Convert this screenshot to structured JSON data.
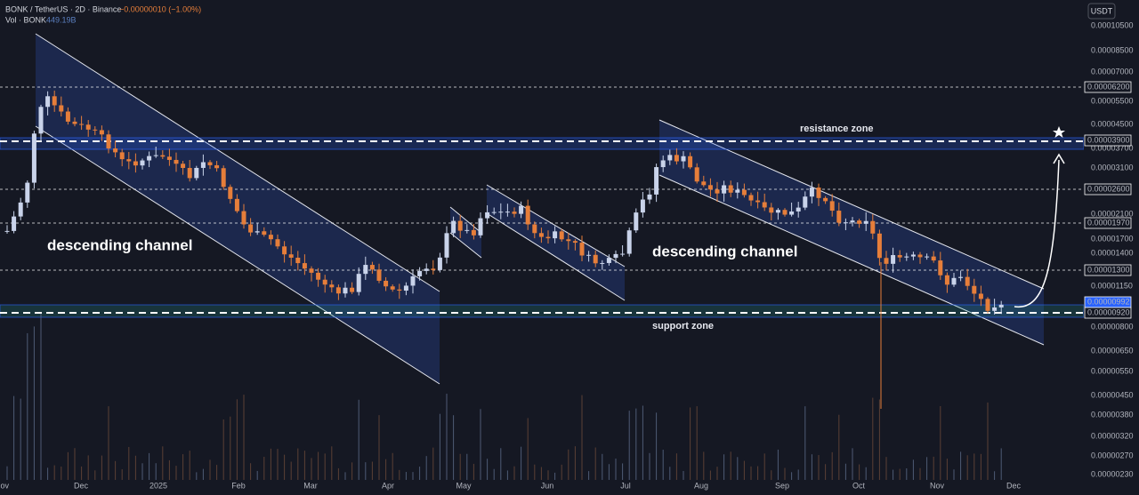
{
  "header": {
    "symbol": "BONK / TetherUS · 2D · Binance",
    "change": "−0.00000010 (−1.00%)",
    "volume_label": "Vol · BONK",
    "volume_value": "449.19B"
  },
  "currency": "USDT",
  "price_labels": [
    "0.00010500",
    "0.00008500",
    "0.00007000",
    "0.00005500",
    "0.00004500",
    "0.00003700",
    "0.00003100",
    "0.00002100",
    "0.00001700",
    "0.00001400",
    "0.00001150",
    "0.00000800",
    "0.00000650",
    "0.00000550",
    "0.00000450",
    "0.00000380",
    "0.00000320",
    "0.00000270",
    "0.00000230"
  ],
  "price_levels": [
    "0.00006200",
    "0.00003900",
    "0.00002600",
    "0.00001970",
    "0.00001300",
    "0.00000992",
    "0.00000920"
  ],
  "time_labels": [
    "Nov",
    "Dec",
    "2025",
    "Feb",
    "Mar",
    "Apr",
    "May",
    "Jun",
    "Jul",
    "Aug",
    "Sep",
    "Oct",
    "Nov",
    "Dec"
  ],
  "annotations": {
    "channel_left": "descending channel",
    "channel_right": "descending channel",
    "resistance": "resistance zone",
    "support": "support zone"
  }
}
